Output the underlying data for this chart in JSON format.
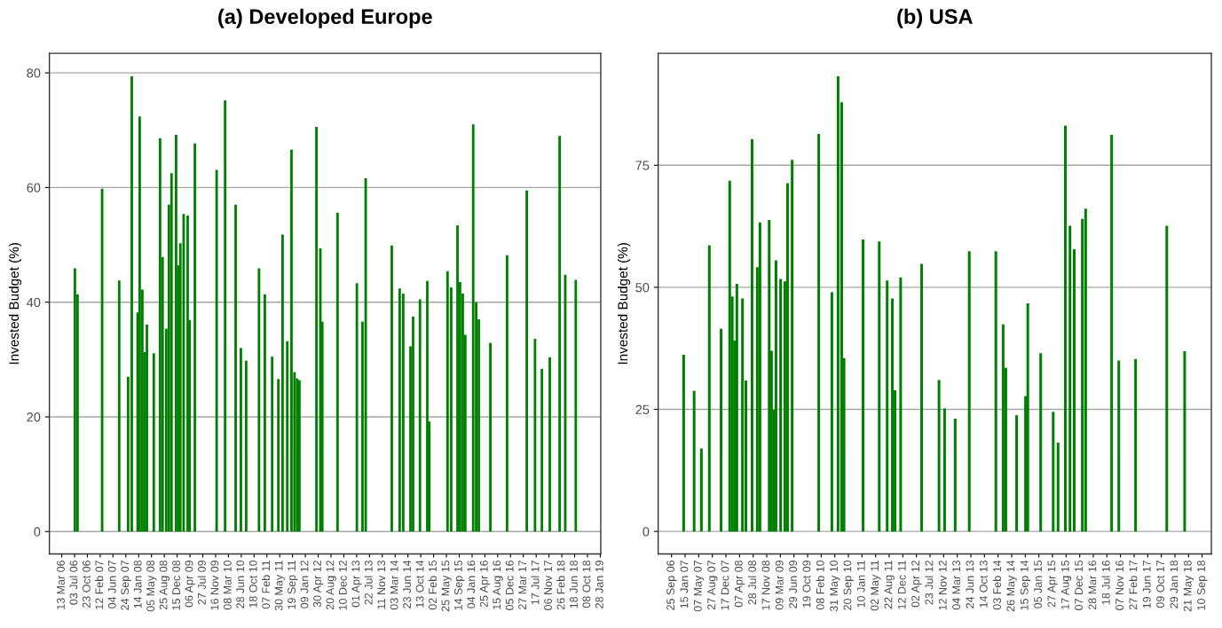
{
  "chart_data": [
    {
      "type": "bar",
      "title": "(a) Developed Europe",
      "ylabel": "Invested Budget (%)",
      "color": "#008000",
      "grid": "y",
      "legend": false,
      "x": [
        "2006-07-06",
        "2006-07-29",
        "2007-03-01",
        "2007-07-28",
        "2007-10-14",
        "2007-11-15",
        "2008-01-05",
        "2008-01-23",
        "2008-02-15",
        "2008-03-06",
        "2008-03-26",
        "2008-05-25",
        "2008-07-19",
        "2008-08-10",
        "2008-09-11",
        "2008-10-04",
        "2008-10-27",
        "2008-12-06",
        "2008-12-26",
        "2009-01-12",
        "2009-02-10",
        "2009-03-17",
        "2009-04-03",
        "2009-05-19",
        "2009-11-25",
        "2010-02-07",
        "2010-05-10",
        "2010-06-25",
        "2010-08-10",
        "2010-11-30",
        "2011-01-20",
        "2011-03-25",
        "2011-05-18",
        "2011-06-24",
        "2011-08-04",
        "2011-09-10",
        "2011-10-06",
        "2011-10-29",
        "2011-11-18",
        "2012-04-15",
        "2012-05-19",
        "2012-06-05",
        "2012-10-16",
        "2013-04-03",
        "2013-05-22",
        "2013-06-19",
        "2014-02-02",
        "2014-04-12",
        "2014-05-13",
        "2014-07-15",
        "2014-08-07",
        "2014-10-06",
        "2014-12-09",
        "2014-12-26",
        "2015-06-04",
        "2015-07-06",
        "2015-08-30",
        "2015-09-21",
        "2015-10-15",
        "2015-11-06",
        "2016-01-14",
        "2016-02-09",
        "2016-03-03",
        "2016-06-12",
        "2016-11-05",
        "2017-04-26",
        "2017-07-07",
        "2017-09-05",
        "2017-11-13",
        "2018-02-07",
        "2018-03-28",
        "2018-06-28"
      ],
      "values": [
        45.9,
        41.4,
        59.8,
        43.8,
        27.0,
        79.4,
        38.2,
        72.4,
        42.2,
        31.3,
        36.1,
        31.1,
        68.6,
        47.9,
        35.4,
        57.0,
        62.5,
        69.2,
        46.4,
        50.3,
        55.4,
        55.1,
        36.9,
        67.7,
        63.1,
        75.2,
        57.0,
        32.0,
        29.8,
        45.9,
        41.4,
        30.5,
        26.6,
        51.8,
        33.2,
        66.6,
        27.8,
        26.7,
        26.4,
        70.6,
        49.4,
        36.6,
        55.6,
        43.3,
        36.6,
        61.6,
        49.9,
        42.4,
        41.5,
        32.3,
        37.5,
        40.5,
        43.7,
        19.2,
        45.4,
        42.6,
        53.4,
        43.5,
        41.5,
        34.3,
        71.0,
        40.0,
        37.0,
        32.9,
        48.2,
        59.5,
        33.6,
        28.4,
        30.4,
        69.0,
        44.8,
        43.9
      ],
      "xlim": [
        "2005-11-25",
        "2019-02-01"
      ],
      "ylim": [
        -3.9,
        83.4
      ],
      "yticks": [
        0,
        20,
        40,
        60,
        80
      ],
      "xticks": [
        {
          "value": "2006-03-13",
          "label": "13 Mar 06"
        },
        {
          "value": "2006-07-03",
          "label": "03 Jul 06"
        },
        {
          "value": "2006-10-23",
          "label": "23 Oct 06"
        },
        {
          "value": "2007-02-12",
          "label": "12 Feb 07"
        },
        {
          "value": "2007-06-04",
          "label": "04 Jun 07"
        },
        {
          "value": "2007-09-24",
          "label": "24 Sep 07"
        },
        {
          "value": "2008-01-14",
          "label": "14 Jan 08"
        },
        {
          "value": "2008-05-05",
          "label": "05 May 08"
        },
        {
          "value": "2008-08-25",
          "label": "25 Aug 08"
        },
        {
          "value": "2008-12-15",
          "label": "15 Dec 08"
        },
        {
          "value": "2009-04-06",
          "label": "06 Apr 09"
        },
        {
          "value": "2009-07-27",
          "label": "27 Jul 09"
        },
        {
          "value": "2009-11-16",
          "label": "16 Nov 09"
        },
        {
          "value": "2010-03-08",
          "label": "08 Mar 10"
        },
        {
          "value": "2010-06-28",
          "label": "28 Jun 10"
        },
        {
          "value": "2010-10-18",
          "label": "18 Oct 10"
        },
        {
          "value": "2011-02-07",
          "label": "07 Feb 11"
        },
        {
          "value": "2011-05-30",
          "label": "30 May 11"
        },
        {
          "value": "2011-09-19",
          "label": "19 Sep 11"
        },
        {
          "value": "2012-01-09",
          "label": "09 Jan 12"
        },
        {
          "value": "2012-04-30",
          "label": "30 Apr 12"
        },
        {
          "value": "2012-08-20",
          "label": "20 Aug 12"
        },
        {
          "value": "2012-12-10",
          "label": "10 Dec 12"
        },
        {
          "value": "2013-04-01",
          "label": "01 Apr 13"
        },
        {
          "value": "2013-07-22",
          "label": "22 Jul 13"
        },
        {
          "value": "2013-11-11",
          "label": "11 Nov 13"
        },
        {
          "value": "2014-03-03",
          "label": "03 Mar 14"
        },
        {
          "value": "2014-06-23",
          "label": "23 Jun 14"
        },
        {
          "value": "2014-10-13",
          "label": "13 Oct 14"
        },
        {
          "value": "2015-02-02",
          "label": "02 Feb 15"
        },
        {
          "value": "2015-05-25",
          "label": "25 May 15"
        },
        {
          "value": "2015-09-14",
          "label": "14 Sep 15"
        },
        {
          "value": "2016-01-04",
          "label": "04 Jan 16"
        },
        {
          "value": "2016-04-25",
          "label": "25 Apr 16"
        },
        {
          "value": "2016-08-15",
          "label": "15 Aug 16"
        },
        {
          "value": "2016-12-05",
          "label": "05 Dec 16"
        },
        {
          "value": "2017-03-27",
          "label": "27 Mar 17"
        },
        {
          "value": "2017-07-17",
          "label": "17 Jul 17"
        },
        {
          "value": "2017-11-06",
          "label": "06 Nov 17"
        },
        {
          "value": "2018-02-26",
          "label": "26 Feb 18"
        },
        {
          "value": "2018-06-18",
          "label": "18 Jun 18"
        },
        {
          "value": "2018-10-08",
          "label": "08 Oct 18"
        },
        {
          "value": "2019-01-28",
          "label": "28 Jan 19"
        }
      ]
    },
    {
      "type": "bar",
      "title": "(b) USA",
      "ylabel": "Invested Budget (%)",
      "color": "#008000",
      "grid": "y",
      "legend": false,
      "x": [
        "2007-01-03",
        "2007-03-30",
        "2007-05-29",
        "2007-08-02",
        "2007-11-07",
        "2008-01-17",
        "2008-02-07",
        "2008-02-26",
        "2008-03-16",
        "2008-05-01",
        "2008-05-29",
        "2008-07-19",
        "2008-08-31",
        "2008-09-22",
        "2008-12-07",
        "2008-12-26",
        "2009-01-14",
        "2009-02-01",
        "2009-03-11",
        "2009-04-15",
        "2009-05-07",
        "2009-06-14",
        "2010-01-19",
        "2010-05-07",
        "2010-06-27",
        "2010-07-27",
        "2010-08-15",
        "2011-01-19",
        "2011-06-01",
        "2011-08-05",
        "2011-09-17",
        "2011-10-09",
        "2011-11-24",
        "2012-05-15",
        "2012-10-05",
        "2012-11-20",
        "2013-02-15",
        "2013-06-11",
        "2014-01-16",
        "2014-03-17",
        "2014-04-08",
        "2014-07-06",
        "2014-09-17",
        "2014-10-06",
        "2015-01-20",
        "2015-05-03",
        "2015-06-12",
        "2015-08-11",
        "2015-09-18",
        "2015-10-23",
        "2015-12-29",
        "2016-01-25",
        "2016-08-26",
        "2016-10-24",
        "2017-03-11",
        "2017-11-23",
        "2018-04-19"
      ],
      "values": [
        36.2,
        28.8,
        17.0,
        58.6,
        41.5,
        71.8,
        48.1,
        39.1,
        50.7,
        47.7,
        30.9,
        80.3,
        54.1,
        63.3,
        63.8,
        37.0,
        24.9,
        55.5,
        51.7,
        51.2,
        71.3,
        76.1,
        81.4,
        49.0,
        93.2,
        87.9,
        35.5,
        59.8,
        59.4,
        51.4,
        47.7,
        28.9,
        52.0,
        54.8,
        31.0,
        25.2,
        23.1,
        57.4,
        57.4,
        42.4,
        33.5,
        23.8,
        27.7,
        46.7,
        36.5,
        24.5,
        18.2,
        83.1,
        62.6,
        57.8,
        64.0,
        66.1,
        81.2,
        35.0,
        35.3,
        62.6,
        36.9
      ],
      "xlim": [
        "2006-06-07",
        "2018-11-25"
      ],
      "ylim": [
        -4.6,
        97.9
      ],
      "yticks": [
        0,
        25,
        50,
        75
      ],
      "xticks": [
        {
          "value": "2006-09-25",
          "label": "25 Sep 06"
        },
        {
          "value": "2007-01-15",
          "label": "15 Jan 07"
        },
        {
          "value": "2007-05-07",
          "label": "07 May 07"
        },
        {
          "value": "2007-08-27",
          "label": "27 Aug 07"
        },
        {
          "value": "2007-12-17",
          "label": "17 Dec 07"
        },
        {
          "value": "2008-04-07",
          "label": "07 Apr 08"
        },
        {
          "value": "2008-07-28",
          "label": "28 Jul 08"
        },
        {
          "value": "2008-11-17",
          "label": "17 Nov 08"
        },
        {
          "value": "2009-03-09",
          "label": "09 Mar 09"
        },
        {
          "value": "2009-06-29",
          "label": "29 Jun 09"
        },
        {
          "value": "2009-10-19",
          "label": "19 Oct 09"
        },
        {
          "value": "2010-02-08",
          "label": "08 Feb 10"
        },
        {
          "value": "2010-05-31",
          "label": "31 May 10"
        },
        {
          "value": "2010-09-20",
          "label": "20 Sep 10"
        },
        {
          "value": "2011-01-10",
          "label": "10 Jan 11"
        },
        {
          "value": "2011-05-02",
          "label": "02 May 11"
        },
        {
          "value": "2011-08-22",
          "label": "22 Aug 11"
        },
        {
          "value": "2011-12-12",
          "label": "12 Dec 11"
        },
        {
          "value": "2012-04-02",
          "label": "02 Apr 12"
        },
        {
          "value": "2012-07-23",
          "label": "23 Jul 12"
        },
        {
          "value": "2012-11-12",
          "label": "12 Nov 12"
        },
        {
          "value": "2013-03-04",
          "label": "04 Mar 13"
        },
        {
          "value": "2013-06-24",
          "label": "24 Jun 13"
        },
        {
          "value": "2013-10-14",
          "label": "14 Oct 13"
        },
        {
          "value": "2014-02-03",
          "label": "03 Feb 14"
        },
        {
          "value": "2014-05-26",
          "label": "26 May 14"
        },
        {
          "value": "2014-09-15",
          "label": "15 Sep 14"
        },
        {
          "value": "2015-01-05",
          "label": "05 Jan 15"
        },
        {
          "value": "2015-04-27",
          "label": "27 Apr 15"
        },
        {
          "value": "2015-08-17",
          "label": "17 Aug 15"
        },
        {
          "value": "2015-12-07",
          "label": "07 Dec 15"
        },
        {
          "value": "2016-03-28",
          "label": "28 Mar 16"
        },
        {
          "value": "2016-07-18",
          "label": "18 Jul 16"
        },
        {
          "value": "2016-11-07",
          "label": "07 Nov 16"
        },
        {
          "value": "2017-02-27",
          "label": "27 Feb 17"
        },
        {
          "value": "2017-06-19",
          "label": "19 Jun 17"
        },
        {
          "value": "2017-10-09",
          "label": "09 Oct 17"
        },
        {
          "value": "2018-01-29",
          "label": "29 Jan 18"
        },
        {
          "value": "2018-05-21",
          "label": "21 May 18"
        },
        {
          "value": "2018-09-10",
          "label": "10 Sep 18"
        }
      ]
    }
  ]
}
